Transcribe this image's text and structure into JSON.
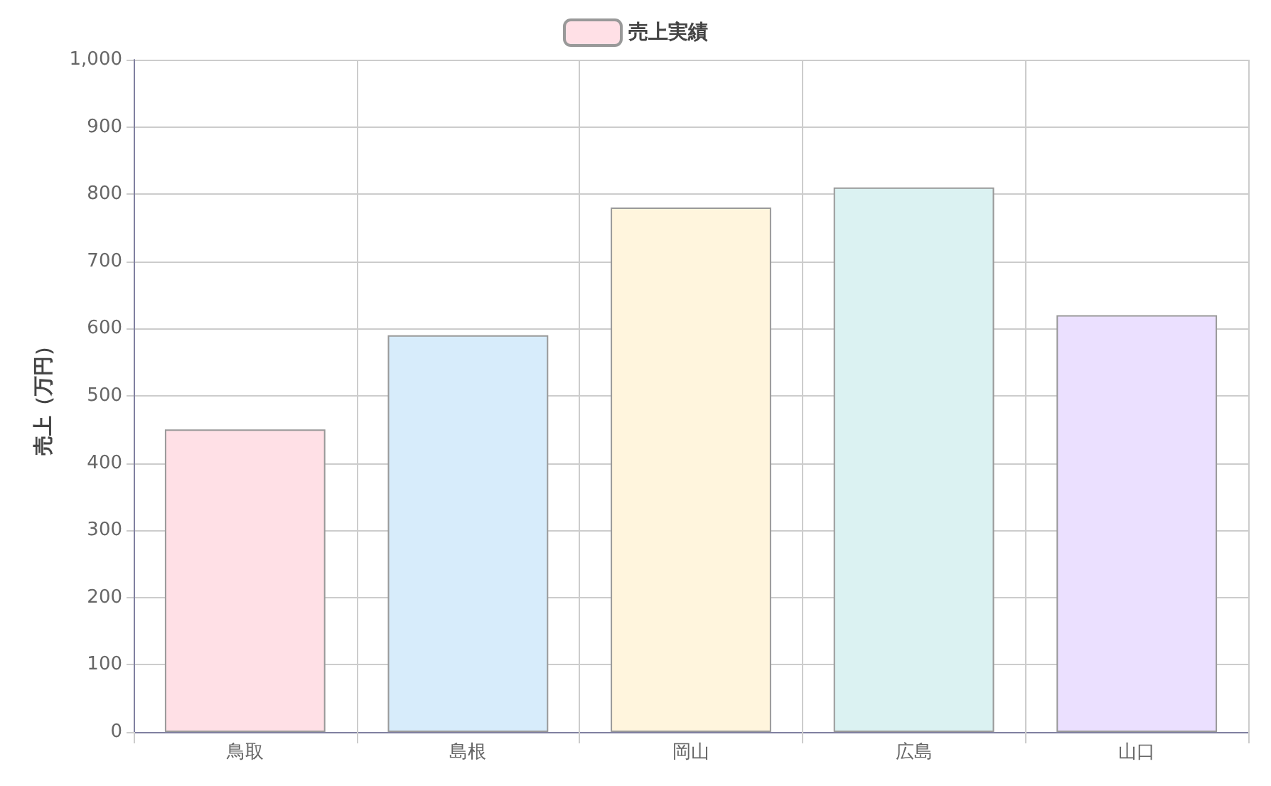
{
  "chart_data": {
    "type": "bar",
    "ylabel": "売上（万円）",
    "categories": [
      "鳥取",
      "島根",
      "岡山",
      "広島",
      "山口"
    ],
    "series": [
      {
        "name": "売上実績",
        "values": [
          450,
          590,
          780,
          810,
          620
        ],
        "colors": [
          "#ffe0e6",
          "#d7ecfb",
          "#fff5dd",
          "#dbf2f2",
          "#ebe0ff"
        ]
      }
    ],
    "ylim": [
      0,
      1000
    ],
    "yticks": [
      0,
      100,
      200,
      300,
      400,
      500,
      600,
      700,
      800,
      900,
      {
        "value": 1000,
        "label": "1,000"
      }
    ],
    "grid": true,
    "legend": "top"
  }
}
